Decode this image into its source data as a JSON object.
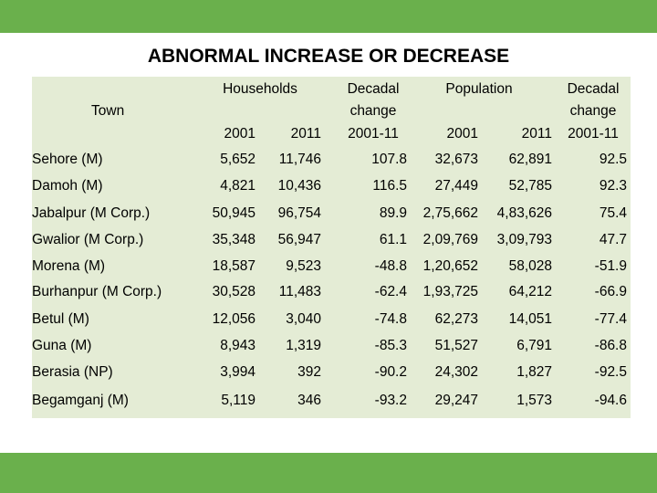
{
  "title": "ABNORMAL INCREASE OR DECREASE",
  "colors": {
    "accent_bar": "#6ab04c",
    "table_bg": "#e4ecd5"
  },
  "headers": {
    "town": "Town",
    "households": "Households",
    "hh_2001": "2001",
    "hh_2011": "2011",
    "hh_decadal": [
      "Decadal",
      "change",
      "2001-11"
    ],
    "population": "Population",
    "pop_2001": "2001",
    "pop_2011": "2011",
    "pop_decadal": [
      "Decadal",
      "change",
      "2001-11"
    ]
  },
  "rows": [
    [
      "Sehore (M)",
      "5,652",
      "11,746",
      "107.8",
      "32,673",
      "62,891",
      "92.5"
    ],
    [
      "Damoh (M)",
      "4,821",
      "10,436",
      "116.5",
      "27,449",
      "52,785",
      "92.3"
    ],
    [
      "Jabalpur (M Corp.)",
      "50,945",
      "96,754",
      "89.9",
      "2,75,662",
      "4,83,626",
      "75.4"
    ],
    [
      "Gwalior (M Corp.)",
      "35,348",
      "56,947",
      "61.1",
      "2,09,769",
      "3,09,793",
      "47.7"
    ],
    [
      "Morena (M)",
      "18,587",
      "9,523",
      "-48.8",
      "1,20,652",
      "58,028",
      "-51.9"
    ],
    [
      "Burhanpur (M Corp.)",
      "30,528",
      "11,483",
      "-62.4",
      "1,93,725",
      "64,212",
      "-66.9"
    ],
    [
      "Betul (M)",
      "12,056",
      "3,040",
      "-74.8",
      "62,273",
      "14,051",
      "-77.4"
    ],
    [
      "Guna (M)",
      "8,943",
      "1,319",
      "-85.3",
      "51,527",
      "6,791",
      "-86.8"
    ],
    [
      "Berasia (NP)",
      "3,994",
      "392",
      "-90.2",
      "24,302",
      "1,827",
      "-92.5"
    ],
    [
      "Begamganj (M)",
      "5,119",
      "346",
      "-93.2",
      "29,247",
      "1,573",
      "-94.6"
    ]
  ]
}
